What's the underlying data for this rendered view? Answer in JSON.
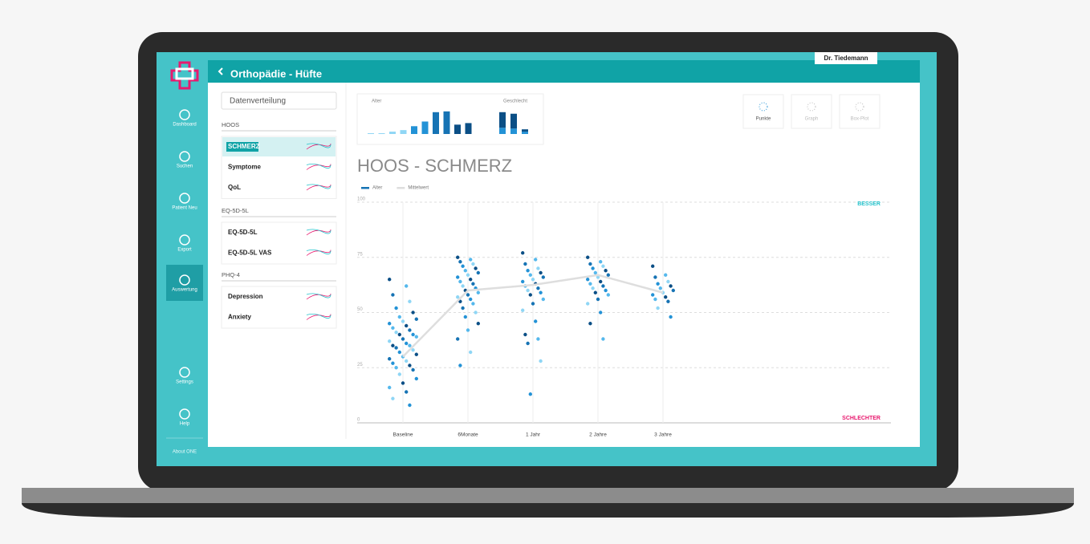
{
  "app": {
    "header": "Orthopädie - Hüfte",
    "user": "Dr. Tiedemann",
    "nav": [
      {
        "label": "Dashboard",
        "active": false
      },
      {
        "label": "Suchen",
        "active": false
      },
      {
        "label": "Patient Neu",
        "active": false
      },
      {
        "label": "Export",
        "active": false
      },
      {
        "label": "Auswertung",
        "active": true
      },
      {
        "label": "Settings",
        "active": false
      },
      {
        "label": "Help",
        "active": false
      }
    ],
    "about": "About ONE"
  },
  "panel": {
    "search": "Datenverteilung",
    "groups": [
      {
        "label": "HOOS",
        "items": [
          {
            "label": "SCHMERZ",
            "active": true
          },
          {
            "label": "Symptome",
            "active": false
          },
          {
            "label": "QoL",
            "active": false
          }
        ]
      },
      {
        "label": "EQ-5D-5L",
        "items": [
          {
            "label": "EQ-5D-5L",
            "active": false
          },
          {
            "label": "EQ-5D-5L VAS",
            "active": false
          }
        ]
      },
      {
        "label": "PHQ-4",
        "items": [
          {
            "label": "Depression",
            "active": false
          },
          {
            "label": "Anxiety",
            "active": false
          }
        ]
      }
    ]
  },
  "views": [
    {
      "label": "Punkte",
      "active": true
    },
    {
      "label": "Graph",
      "active": false
    },
    {
      "label": "Box-Plot",
      "active": false
    }
  ],
  "chart_data": [
    {
      "type": "strip",
      "title": "HOOS - SCHMERZ",
      "categories": [
        "Baseline",
        "6Monate",
        "1 Jahr",
        "2 Jahre",
        "3 Jahre"
      ],
      "ylim": [
        0,
        100
      ],
      "yticks": [
        0,
        25,
        50,
        75,
        100
      ],
      "grid": true,
      "annotations": [
        {
          "text": "BESSER",
          "color": "#26c3cc"
        },
        {
          "text": "SCHLECHTER",
          "color": "#e8196e"
        }
      ],
      "series": [
        {
          "name": "Alter",
          "type": "points",
          "colors": [
            "#0b4f86",
            "#1673b4",
            "#2392d6",
            "#55b8ec",
            "#8fd6f5"
          ],
          "values": [
            [
              65,
              62,
              58,
              55,
              52,
              50,
              48,
              47,
              46,
              45,
              44,
              43,
              42,
              41,
              40,
              40,
              39,
              38,
              37,
              36,
              35,
              35,
              34,
              33,
              32,
              31,
              30,
              29,
              28,
              27,
              26,
              25,
              24,
              22,
              20,
              18,
              16,
              14,
              11,
              8
            ],
            [
              75,
              74,
              73,
              72,
              71,
              70,
              69,
              68,
              67,
              66,
              65,
              64,
              63,
              62,
              61,
              60,
              59,
              58,
              57,
              56,
              55,
              54,
              52,
              50,
              48,
              45,
              42,
              38,
              32,
              26
            ],
            [
              77,
              74,
              72,
              70,
              69,
              68,
              67,
              66,
              65,
              64,
              63,
              62,
              61,
              60,
              59,
              58,
              56,
              54,
              51,
              46,
              40,
              38,
              36,
              28,
              13
            ],
            [
              75,
              73,
              72,
              71,
              70,
              69,
              68,
              67,
              66,
              65,
              64,
              63,
              62,
              61,
              60,
              59,
              58,
              56,
              54,
              50,
              45,
              38
            ],
            [
              71,
              67,
              66,
              64,
              63,
              62,
              61,
              60,
              59,
              58,
              57,
              56,
              55,
              52,
              48
            ]
          ]
        },
        {
          "name": "Mittelwert",
          "type": "line",
          "color": "#dedede",
          "values": [
            30,
            60,
            62.5,
            67,
            59
          ]
        }
      ]
    },
    {
      "type": "bar",
      "title": "Alter",
      "ylim": [
        0,
        35
      ],
      "values": [
        1,
        1,
        3,
        5,
        10,
        16,
        28,
        29,
        12,
        14
      ],
      "colors": [
        "#8fd6f5",
        "#8fd6f5",
        "#8fd6f5",
        "#8fd6f5",
        "#2392d6",
        "#2392d6",
        "#1673b4",
        "#1673b4",
        "#0b4f86",
        "#0b4f86"
      ]
    },
    {
      "type": "stacked",
      "title": "Geschlecht",
      "ylim": [
        0,
        35
      ],
      "series": [
        {
          "color": "#2392d6",
          "values": [
            8,
            7,
            3
          ]
        },
        {
          "color": "#0b4f86",
          "values": [
            20,
            19,
            3
          ]
        }
      ]
    }
  ]
}
